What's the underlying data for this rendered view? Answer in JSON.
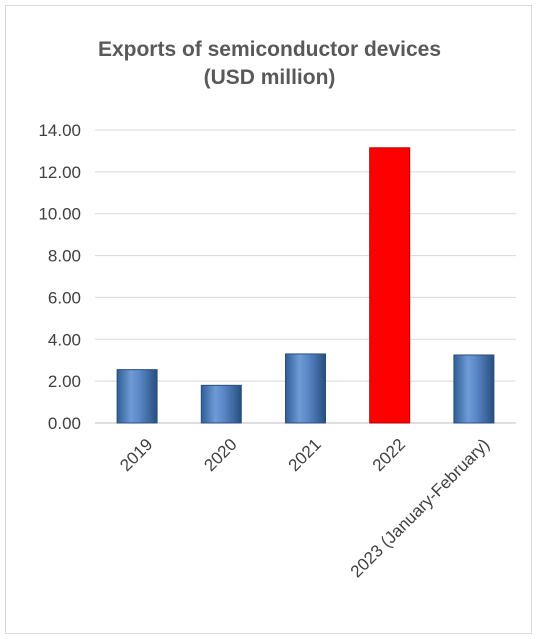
{
  "chart_data": {
    "type": "bar",
    "title_line1": "Exports of semiconductor devices",
    "title_line2": "(USD million)",
    "categories": [
      "2019",
      "2020",
      "2021",
      "2022",
      "2023 (January-February)"
    ],
    "values": [
      2.55,
      1.8,
      3.3,
      13.15,
      3.25
    ],
    "yticks": [
      "0.00",
      "2.00",
      "4.00",
      "6.00",
      "8.00",
      "10.00",
      "12.00",
      "14.00"
    ],
    "ylim": [
      0,
      14
    ],
    "grid": true,
    "colors": {
      "default": "#4f81bd",
      "highlight": "#ff0000",
      "grid": "#d9d9d9",
      "axis": "#bfbfbf"
    },
    "highlight_index": 3
  }
}
